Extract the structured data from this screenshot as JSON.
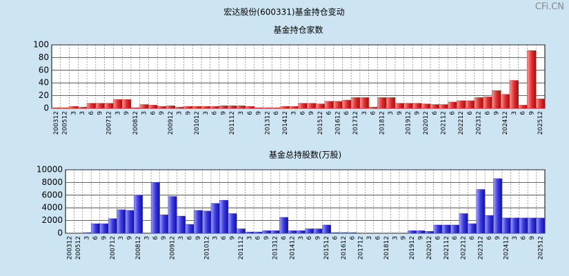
{
  "title": "宏达股份(600331)基金持仓变动",
  "watermark": "CFi.CN",
  "chart_data": [
    {
      "type": "bar",
      "title": "基金持仓家数",
      "color": "#e03030",
      "categories": [
        "200312",
        "200512",
        "3",
        "3",
        "6",
        "9",
        "200712",
        "3",
        "9",
        "200812",
        "3",
        "6",
        "9",
        "200912",
        "3",
        "9",
        "201012",
        "3",
        "6",
        "9",
        "201112",
        "3",
        "6",
        "9",
        "201312",
        "6",
        "201412",
        "3",
        "6",
        "9",
        "201512",
        "6",
        "201612",
        "6",
        "201712",
        "3",
        "6",
        "201812",
        "3",
        "9",
        "201912",
        "9",
        "202012",
        "6",
        "202112",
        "6",
        "202212",
        "6",
        "202312",
        "6",
        "9",
        "202412",
        "3",
        "6",
        "9",
        "202512"
      ],
      "values": [
        1,
        1,
        3,
        2,
        8,
        8,
        8,
        14,
        14,
        1,
        6,
        5,
        3,
        4,
        2,
        3,
        3,
        3,
        3,
        4,
        4,
        4,
        3,
        1,
        1,
        1,
        3,
        3,
        8,
        8,
        7,
        11,
        11,
        13,
        17,
        17,
        2,
        17,
        17,
        8,
        8,
        8,
        7,
        6,
        6,
        10,
        12,
        12,
        17,
        18,
        28,
        22,
        44,
        5,
        91,
        15
      ],
      "ylim": [
        0,
        100
      ],
      "yticks": [
        0,
        20,
        40,
        60,
        80,
        100
      ],
      "grid": true
    },
    {
      "type": "bar",
      "title": "基金总持股数(万股)",
      "color": "#3a3ae0",
      "categories": [
        "200312",
        "200512",
        "3",
        "6",
        "9",
        "200712",
        "3",
        "9",
        "200812",
        "3",
        "6",
        "9",
        "200912",
        "3",
        "6",
        "9",
        "201012",
        "3",
        "6",
        "9",
        "201112",
        "3",
        "6",
        "9",
        "201312",
        "6",
        "201412",
        "3",
        "6",
        "9",
        "201512",
        "6",
        "201612",
        "6",
        "201712",
        "3",
        "6",
        "201812",
        "3",
        "9",
        "201912",
        "9",
        "202012",
        "6",
        "202112",
        "6",
        "202212",
        "6",
        "202312",
        "6",
        "9",
        "202412",
        "3",
        "6",
        "9",
        "202512"
      ],
      "values": [
        0,
        0,
        100,
        1500,
        1500,
        2300,
        3700,
        3600,
        6000,
        0,
        8000,
        2900,
        5800,
        2700,
        1400,
        3600,
        3500,
        4700,
        5200,
        3100,
        700,
        200,
        200,
        400,
        400,
        2500,
        400,
        400,
        700,
        700,
        1300,
        100,
        100,
        100,
        0,
        0,
        0,
        0,
        0,
        0,
        400,
        400,
        300,
        1300,
        1300,
        1300,
        3100,
        1500,
        6900,
        2800,
        8600,
        2400,
        2400,
        2400,
        2400,
        2400
      ],
      "ylim": [
        0,
        10000
      ],
      "yticks": [
        0,
        2000,
        4000,
        6000,
        8000,
        10000
      ],
      "grid": true
    }
  ]
}
